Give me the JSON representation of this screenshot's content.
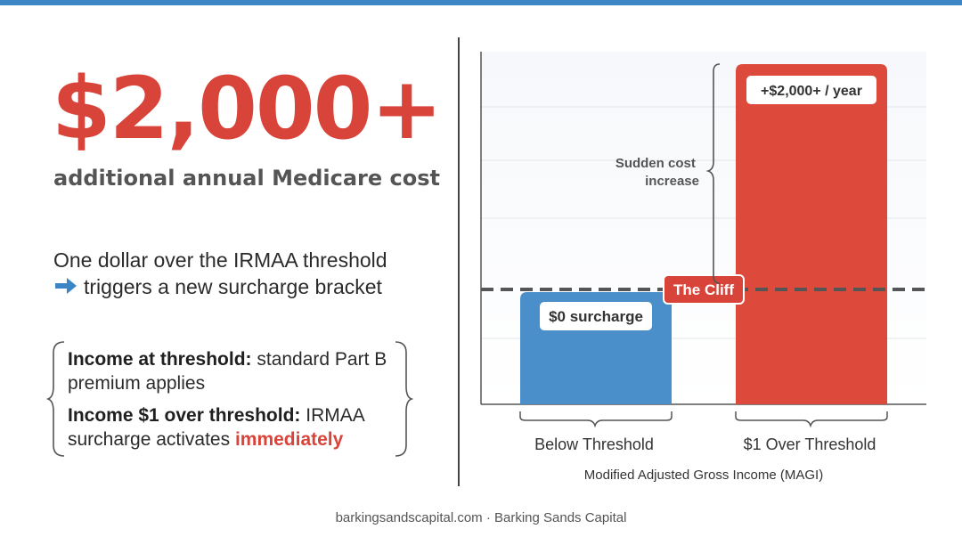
{
  "headline": {
    "amount": "$2,000+",
    "subtitle": "additional annual Medicare cost"
  },
  "explanation": {
    "line1": "One dollar over the IRMAA threshold",
    "line2": "triggers a new surcharge bracket",
    "arrow_icon": "arrow-right-icon"
  },
  "comparison": {
    "item1_bold": "Income at threshold:",
    "item1_rest": " standard Part B premium applies",
    "item2_bold": "Income $1 over threshold:",
    "item2_rest": " IRMAA surcharge activates ",
    "item2_highlight": "immediately"
  },
  "footer": "barkingsandscapital.com · Barking Sands Capital",
  "colors": {
    "accent_red": "#d9443a",
    "accent_blue": "#3d86c6",
    "bar_blue": "#4a8fc9",
    "bar_red": "#dd4a3b"
  },
  "chart_data": {
    "type": "bar",
    "categories": [
      "Below Threshold",
      "$1 Over Threshold"
    ],
    "values": [
      0,
      2000
    ],
    "bar_labels": [
      "$0 surcharge",
      "+$2,000+ / year"
    ],
    "xlabel": "Modified Adjusted Gross Income (MAGI)",
    "ylabel": "",
    "threshold_label": "The Cliff",
    "annotation": "Sudden cost increase",
    "grid": true,
    "y_ticks_labeled": false
  }
}
